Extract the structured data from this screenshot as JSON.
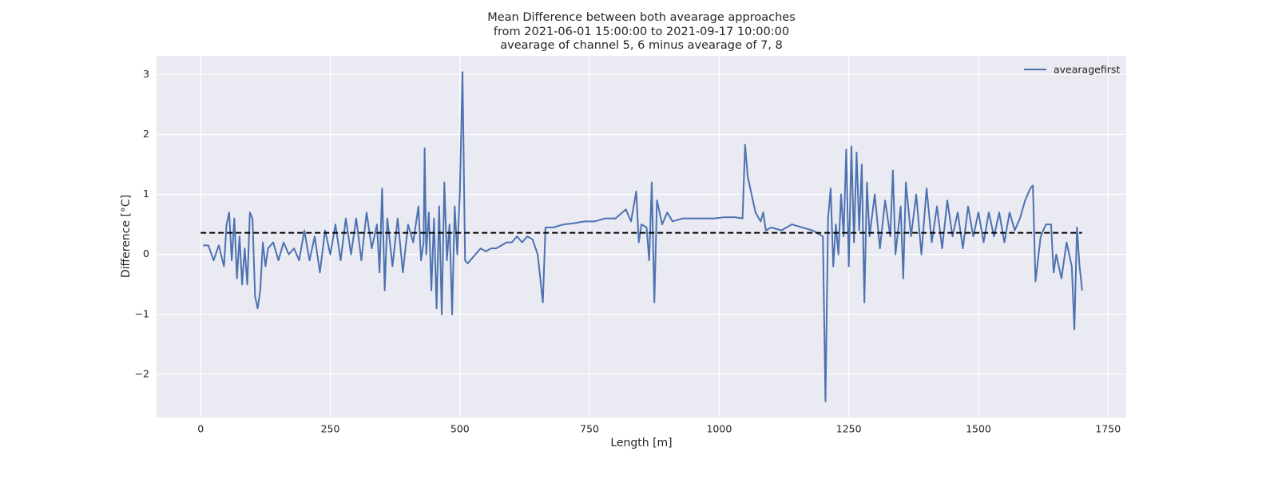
{
  "chart_data": {
    "type": "line",
    "title": [
      "Mean Difference between both avearage approaches",
      "from 2021-06-01 15:00:00 to 2021-09-17 10:00:00",
      "avearage of channel 5, 6 minus avearage of 7, 8"
    ],
    "xlabel": "Length [m]",
    "ylabel": "Difference [°C]",
    "xlim": [
      -85,
      1785
    ],
    "ylim": [
      -2.72,
      3.31
    ],
    "xticks": [
      0,
      250,
      500,
      750,
      1000,
      1250,
      1500,
      1750
    ],
    "yticks": [
      {
        "value": -2,
        "label": "−2"
      },
      {
        "value": -1,
        "label": "−1"
      },
      0,
      1,
      2,
      3
    ],
    "grid": true,
    "legend": "upper right",
    "x": [
      5,
      15,
      25,
      35,
      45,
      50,
      55,
      60,
      65,
      70,
      75,
      80,
      85,
      90,
      95,
      100,
      105,
      110,
      115,
      120,
      125,
      130,
      140,
      150,
      160,
      170,
      180,
      190,
      200,
      210,
      220,
      230,
      240,
      250,
      260,
      270,
      280,
      290,
      300,
      310,
      320,
      330,
      340,
      345,
      350,
      355,
      360,
      370,
      380,
      390,
      400,
      410,
      420,
      425,
      430,
      432,
      435,
      440,
      445,
      450,
      455,
      460,
      465,
      470,
      475,
      480,
      485,
      490,
      495,
      500,
      505,
      510,
      515,
      520,
      530,
      540,
      550,
      560,
      570,
      580,
      590,
      600,
      610,
      620,
      630,
      640,
      650,
      655,
      660,
      665,
      680,
      700,
      720,
      740,
      760,
      780,
      800,
      820,
      830,
      840,
      845,
      850,
      860,
      865,
      870,
      875,
      880,
      890,
      900,
      910,
      930,
      950,
      970,
      990,
      1010,
      1030,
      1045,
      1050,
      1055,
      1060,
      1070,
      1080,
      1085,
      1090,
      1100,
      1120,
      1140,
      1160,
      1180,
      1190,
      1200,
      1205,
      1210,
      1215,
      1220,
      1225,
      1230,
      1235,
      1240,
      1245,
      1250,
      1255,
      1260,
      1265,
      1270,
      1275,
      1280,
      1285,
      1290,
      1300,
      1310,
      1320,
      1330,
      1335,
      1340,
      1350,
      1355,
      1360,
      1370,
      1380,
      1390,
      1400,
      1410,
      1420,
      1430,
      1440,
      1450,
      1460,
      1470,
      1480,
      1490,
      1500,
      1510,
      1520,
      1530,
      1540,
      1550,
      1560,
      1570,
      1580,
      1590,
      1600,
      1605,
      1610,
      1620,
      1630,
      1640,
      1645,
      1650,
      1660,
      1670,
      1680,
      1685,
      1690,
      1695,
      1700
    ],
    "series": [
      {
        "name": "avearagefirst",
        "color": "#4c72b0",
        "values": [
          0.15,
          0.15,
          -0.1,
          0.15,
          -0.2,
          0.5,
          0.7,
          -0.1,
          0.6,
          -0.4,
          0.3,
          -0.5,
          0.1,
          -0.5,
          0.7,
          0.6,
          -0.7,
          -0.9,
          -0.6,
          0.2,
          -0.2,
          0.1,
          0.2,
          -0.1,
          0.2,
          0.0,
          0.1,
          -0.1,
          0.4,
          -0.1,
          0.3,
          -0.3,
          0.4,
          0.0,
          0.5,
          -0.1,
          0.6,
          0.0,
          0.6,
          -0.1,
          0.7,
          0.1,
          0.5,
          -0.3,
          1.1,
          -0.6,
          0.6,
          -0.2,
          0.6,
          -0.3,
          0.5,
          0.2,
          0.8,
          -0.1,
          0.2,
          1.77,
          0.0,
          0.7,
          -0.6,
          0.6,
          -0.9,
          0.8,
          -1.0,
          1.2,
          -0.1,
          0.5,
          -1.0,
          0.8,
          0.0,
          1.05,
          3.04,
          -0.1,
          -0.15,
          -0.1,
          0.0,
          0.1,
          0.05,
          0.1,
          0.1,
          0.15,
          0.2,
          0.2,
          0.3,
          0.2,
          0.3,
          0.25,
          0.0,
          -0.4,
          -0.8,
          0.45,
          0.45,
          0.5,
          0.52,
          0.55,
          0.55,
          0.6,
          0.6,
          0.75,
          0.55,
          1.05,
          0.2,
          0.5,
          0.45,
          -0.1,
          1.2,
          -0.8,
          0.9,
          0.5,
          0.7,
          0.55,
          0.6,
          0.6,
          0.6,
          0.6,
          0.62,
          0.62,
          0.6,
          1.83,
          1.3,
          1.1,
          0.7,
          0.55,
          0.7,
          0.4,
          0.45,
          0.4,
          0.5,
          0.45,
          0.4,
          0.35,
          0.3,
          -2.45,
          0.6,
          1.1,
          -0.2,
          0.5,
          0.0,
          1.0,
          0.3,
          1.75,
          -0.2,
          1.8,
          0.2,
          1.7,
          0.4,
          1.5,
          -0.8,
          1.2,
          0.3,
          1.0,
          0.1,
          0.9,
          0.3,
          1.4,
          0.0,
          0.8,
          -0.4,
          1.2,
          0.3,
          1.0,
          0.0,
          1.1,
          0.2,
          0.8,
          0.1,
          0.9,
          0.3,
          0.7,
          0.1,
          0.8,
          0.3,
          0.7,
          0.2,
          0.7,
          0.3,
          0.7,
          0.2,
          0.7,
          0.4,
          0.6,
          0.9,
          1.1,
          1.15,
          -0.45,
          0.3,
          0.5,
          0.5,
          -0.3,
          0.0,
          -0.4,
          0.2,
          -0.2,
          -1.25,
          0.45,
          -0.2,
          -0.6
        ]
      }
    ],
    "hlines": [
      {
        "y": 0.36,
        "xmin": 0,
        "xmax": 1700,
        "color": "#000000",
        "style": "dashed"
      }
    ]
  }
}
